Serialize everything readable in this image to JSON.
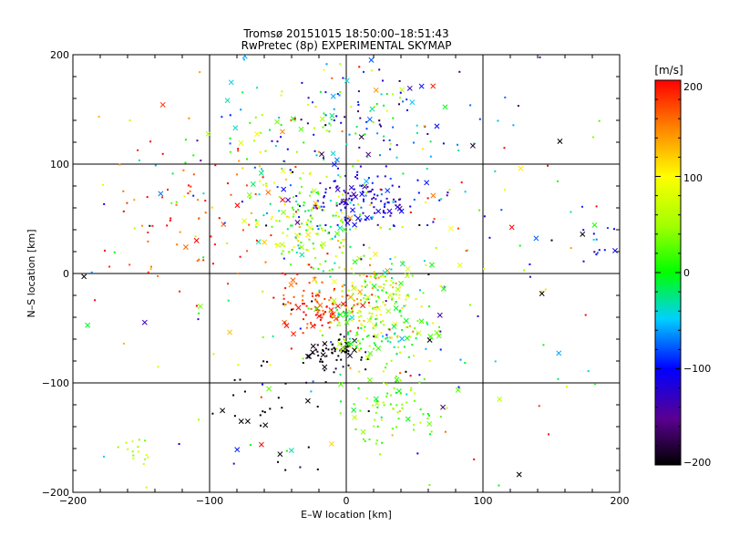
{
  "chart_data": {
    "type": "scatter",
    "title": "Tromsø 20151015 18:50:00–18:51:43",
    "subtitle": "RwPretec (8p) EXPERIMENTAL SKYMAP",
    "xlabel": "E–W location [km]",
    "ylabel": "N–S location [km]",
    "xlim": [
      -200,
      200
    ],
    "ylim": [
      -200,
      200
    ],
    "x_ticks": [
      -200,
      -100,
      0,
      100,
      200
    ],
    "y_ticks": [
      -200,
      -100,
      0,
      100,
      200
    ],
    "x_tick_labels": [
      "−200",
      "−100",
      "0",
      "100",
      "200"
    ],
    "y_tick_labels": [
      "−200",
      "−100",
      "0",
      "100",
      "200"
    ],
    "grid": true,
    "colorbar": {
      "label": "[m/s]",
      "range": [
        -200,
        200
      ],
      "ticks": [
        200,
        100,
        0,
        -100,
        -200
      ],
      "tick_labels": [
        "200",
        "100",
        "0",
        "−100",
        "−200"
      ],
      "colormap": "black-purple-blue-cyan-green-yellow-red"
    },
    "markers": [
      "dot",
      "x"
    ],
    "clusters": [
      {
        "x": 10,
        "y": 65,
        "sx": 22,
        "sy": 12,
        "v": -110,
        "vs": 25,
        "n": 150
      },
      {
        "x": -28,
        "y": 42,
        "sx": 20,
        "sy": 18,
        "v": 45,
        "vs": 45,
        "n": 140
      },
      {
        "x": -20,
        "y": -30,
        "sx": 18,
        "sy": 14,
        "v": 185,
        "vs": 20,
        "n": 110
      },
      {
        "x": 18,
        "y": -25,
        "sx": 22,
        "sy": 20,
        "v": 60,
        "vs": 55,
        "n": 200
      },
      {
        "x": -8,
        "y": -72,
        "sx": 12,
        "sy": 8,
        "v": -195,
        "vs": 10,
        "n": 70
      },
      {
        "x": 25,
        "y": -60,
        "sx": 20,
        "sy": 12,
        "v": 20,
        "vs": 40,
        "n": 70
      },
      {
        "x": 35,
        "y": -125,
        "sx": 20,
        "sy": 15,
        "v": 35,
        "vs": 25,
        "n": 80
      },
      {
        "x": -40,
        "y": 125,
        "sx": 45,
        "sy": 40,
        "v": 10,
        "vs": 80,
        "n": 120
      },
      {
        "x": 25,
        "y": 140,
        "sx": 35,
        "sy": 30,
        "v": -80,
        "vs": 70,
        "n": 80
      },
      {
        "x": -110,
        "y": 60,
        "sx": 35,
        "sy": 35,
        "v": 180,
        "vs": 30,
        "n": 70
      },
      {
        "x": -155,
        "y": -160,
        "sx": 6,
        "sy": 8,
        "v": 60,
        "vs": 20,
        "n": 15
      },
      {
        "x": 165,
        "y": 30,
        "sx": 20,
        "sy": 12,
        "v": -90,
        "vs": 50,
        "n": 18
      },
      {
        "x": -60,
        "y": -130,
        "sx": 20,
        "sy": 35,
        "v": -200,
        "vs": 5,
        "n": 30
      },
      {
        "x": 0,
        "y": 0,
        "sx": 110,
        "sy": 110,
        "v": 0,
        "vs": 150,
        "n": 260
      }
    ]
  }
}
